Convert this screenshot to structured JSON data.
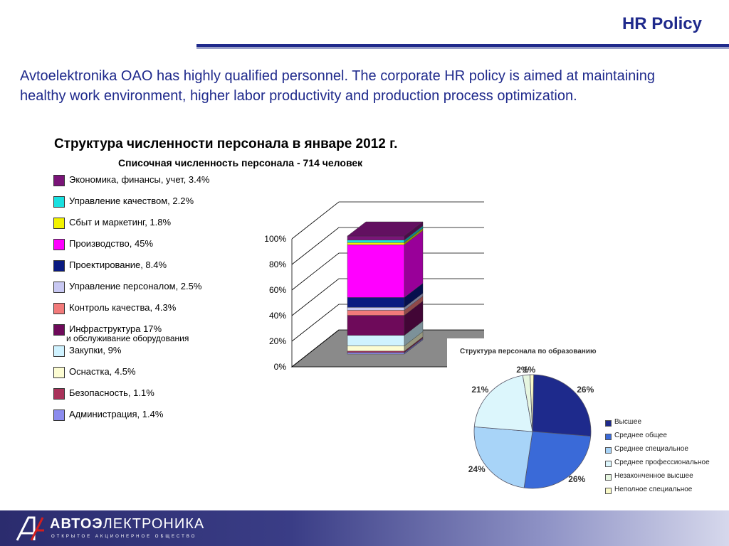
{
  "header": {
    "title": "HR Policy"
  },
  "intro_text": "Avtoelektronika OAO has highly qualified personnel. The corporate HR policy is aimed at maintaining healthy work environment, higher labor productivity and production process optimization.",
  "chart_data": [
    {
      "type": "bar",
      "subtype": "stacked-100-3d",
      "title": "Структура численности персонала в январе 2012 г.",
      "subtitle": "Списочная численность персонала - 714 человек",
      "ylim": [
        0,
        100
      ],
      "yticks": [
        "0%",
        "20%",
        "40%",
        "60%",
        "80%",
        "100%"
      ],
      "legend_position": "left",
      "series": [
        {
          "name": "Экономика, финансы, учет, 3.4%",
          "value": 3.4,
          "color": "#7a1478"
        },
        {
          "name": "Управление качеством, 2.2%",
          "value": 2.2,
          "color": "#19e0e0"
        },
        {
          "name": "Сбыт и маркетинг, 1.8%",
          "value": 1.8,
          "color": "#f2f200"
        },
        {
          "name": "Производство, 45%",
          "value": 45,
          "color": "#ff00ff"
        },
        {
          "name": "Проектирование, 8.4%",
          "value": 8.4,
          "color": "#0a1a80"
        },
        {
          "name": "Управление персоналом, 2.5%",
          "value": 2.5,
          "color": "#c8c8f2"
        },
        {
          "name": "Контроль качества, 4.3%",
          "value": 4.3,
          "color": "#f27a7a"
        },
        {
          "name": "Инфраструктура 17%",
          "name_line2": "и обслуживание оборудования",
          "value": 17,
          "color": "#6e0a5a"
        },
        {
          "name": "Закупки, 9%",
          "value": 9,
          "color": "#cff2ff"
        },
        {
          "name": "Оснастка, 4.5%",
          "value": 4.5,
          "color": "#fcfcd2"
        },
        {
          "name": "Безопасность, 1.1%",
          "value": 1.1,
          "color": "#a8325a"
        },
        {
          "name": "Администрация, 1.4%",
          "value": 1.4,
          "color": "#8c8cee"
        }
      ]
    },
    {
      "type": "pie",
      "title": "Структура персонала по образованию",
      "legend_position": "right",
      "series": [
        {
          "name": "Высшее",
          "value": 26,
          "label": "26%",
          "color": "#1e2a8c"
        },
        {
          "name": "Среднее общее",
          "value": 26,
          "label": "26%",
          "color": "#3a6ad8"
        },
        {
          "name": "Среднее специальное",
          "value": 24,
          "label": "24%",
          "color": "#a8d4f8"
        },
        {
          "name": "Среднее профессиональное",
          "value": 21,
          "label": "21%",
          "color": "#dcf6fc"
        },
        {
          "name": "Незаконченное высшее",
          "value": 2,
          "label": "2%",
          "color": "#e6f6e0"
        },
        {
          "name": "Неполное специальное",
          "value": 1,
          "label": "1%",
          "color": "#fafac8"
        }
      ]
    }
  ],
  "footer": {
    "logo_bold": "АВТОЭ",
    "logo_rest": "ЛЕКТРОНИКА",
    "logo_sub": "ОТКРЫТОЕ АКЦИОНЕРНОЕ ОБЩЕСТВО"
  }
}
